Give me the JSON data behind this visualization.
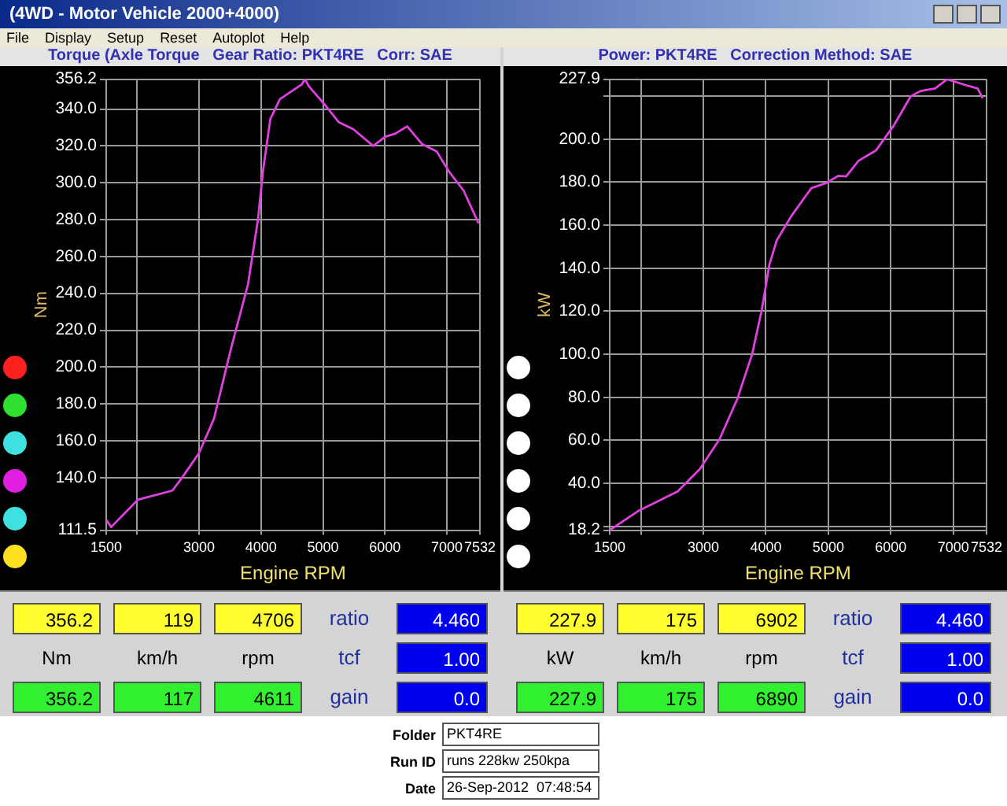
{
  "chart_data": [
    {
      "type": "other",
      "title": "(4WD - Motor Vehicle 2000+4000)",
      "annotations": [
        "File",
        "Display",
        "Setup",
        "Reset",
        "Autoplot",
        "Help"
      ]
    },
    {
      "type": "line",
      "title": "Torque (Axle Torque   Gear Ratio: PKT4RE   Corr: SAE",
      "xlabel": "Engine RPM",
      "ylabel": "Nm",
      "x": [
        1500,
        1580,
        2010,
        2570,
        2725,
        3000,
        3240,
        3515,
        3790,
        3950,
        4030,
        4150,
        4305,
        4660,
        4706,
        4780,
        5020,
        5250,
        5490,
        5810,
        6005,
        6165,
        6360,
        6600,
        6835,
        7035,
        7270,
        7510
      ],
      "series": [
        {
          "color": "#e040e0",
          "values": [
            117.2,
            113.2,
            128,
            133,
            140,
            153.4,
            172,
            210,
            245,
            280,
            306,
            334.6,
            345.4,
            353.4,
            356.2,
            352,
            342.7,
            333,
            329,
            320,
            325,
            326.6,
            330.6,
            321,
            317,
            306,
            295.7,
            278
          ]
        }
      ],
      "xlim": [
        1500,
        7532
      ],
      "xticks": [
        1500,
        {
          "value": 2000,
          "label": null
        },
        3000,
        4000,
        5000,
        6000,
        7000,
        7532
      ],
      "ylim": [
        111.5,
        356.2
      ],
      "yticks": [
        111.5,
        {
          "value": 140,
          "label": "140.0"
        },
        {
          "value": 160,
          "label": "160.0"
        },
        {
          "value": 180,
          "label": "180.0"
        },
        {
          "value": 200,
          "label": "200.0"
        },
        {
          "value": 220,
          "label": "220.0"
        },
        {
          "value": 240,
          "label": "240.0"
        },
        {
          "value": 260,
          "label": "260.0"
        },
        {
          "value": 280,
          "label": "280.0"
        },
        {
          "value": 300,
          "label": "300.0"
        },
        {
          "value": 320,
          "label": "320.0"
        },
        {
          "value": 340,
          "label": "340.0"
        },
        356.2
      ],
      "grid": true,
      "legend": false,
      "annotations": [
        "356.2",
        "119",
        "4706",
        "ratio",
        "4.460",
        "Nm",
        "km/h",
        "rpm",
        "tcf",
        "1.00",
        "356.2",
        "117",
        "4611",
        "gain",
        "0.0"
      ]
    },
    {
      "type": "line",
      "title": "Power: PKT4RE   Correction Method: SAE",
      "xlabel": "Engine RPM",
      "ylabel": "kW",
      "x": [
        1500,
        1950,
        2590,
        2945,
        3260,
        3540,
        3780,
        3935,
        4055,
        4175,
        4415,
        4730,
        4970,
        5165,
        5285,
        5485,
        5760,
        6040,
        6320,
        6475,
        6710,
        6902,
        7190,
        7390,
        7470
      ],
      "series": [
        {
          "color": "#e040e0",
          "values": [
            18.2,
            27,
            36.3,
            46.7,
            60.6,
            79,
            100,
            120.7,
            141.5,
            153,
            164.6,
            177.3,
            179.7,
            183,
            182.7,
            190,
            194.7,
            206,
            220,
            222.4,
            223.6,
            227.9,
            225.2,
            223.6,
            219
          ]
        }
      ],
      "xlim": [
        1500,
        7532
      ],
      "xticks": [
        1500,
        {
          "value": 2000,
          "label": null
        },
        3000,
        4000,
        5000,
        6000,
        7000,
        7532
      ],
      "ylim": [
        18.2,
        227.9
      ],
      "yticks": [
        18.2,
        {
          "value": 20,
          "label": null
        },
        {
          "value": 40,
          "label": "40.0"
        },
        {
          "value": 60,
          "label": "60.0"
        },
        {
          "value": 80,
          "label": "80.0"
        },
        {
          "value": 100,
          "label": "100.0"
        },
        {
          "value": 120,
          "label": "120.0"
        },
        {
          "value": 140,
          "label": "140.0"
        },
        {
          "value": 160,
          "label": "160.0"
        },
        {
          "value": 180,
          "label": "180.0"
        },
        {
          "value": 200,
          "label": "200.0"
        },
        {
          "value": 220,
          "label": null
        },
        227.9
      ],
      "grid": true,
      "legend": false,
      "annotations": [
        "227.9",
        "175",
        "6902",
        "ratio",
        "4.460",
        "kW",
        "km/h",
        "rpm",
        "tcf",
        "1.00",
        "227.9",
        "175",
        "6890",
        "gain",
        "0.0"
      ]
    },
    {
      "type": "other",
      "annotations": [
        "Folder",
        "PKT4RE",
        "Run ID",
        "runs 228kw 250kpa",
        "Date",
        "26-Sep-2012  07:48:54"
      ]
    }
  ]
}
